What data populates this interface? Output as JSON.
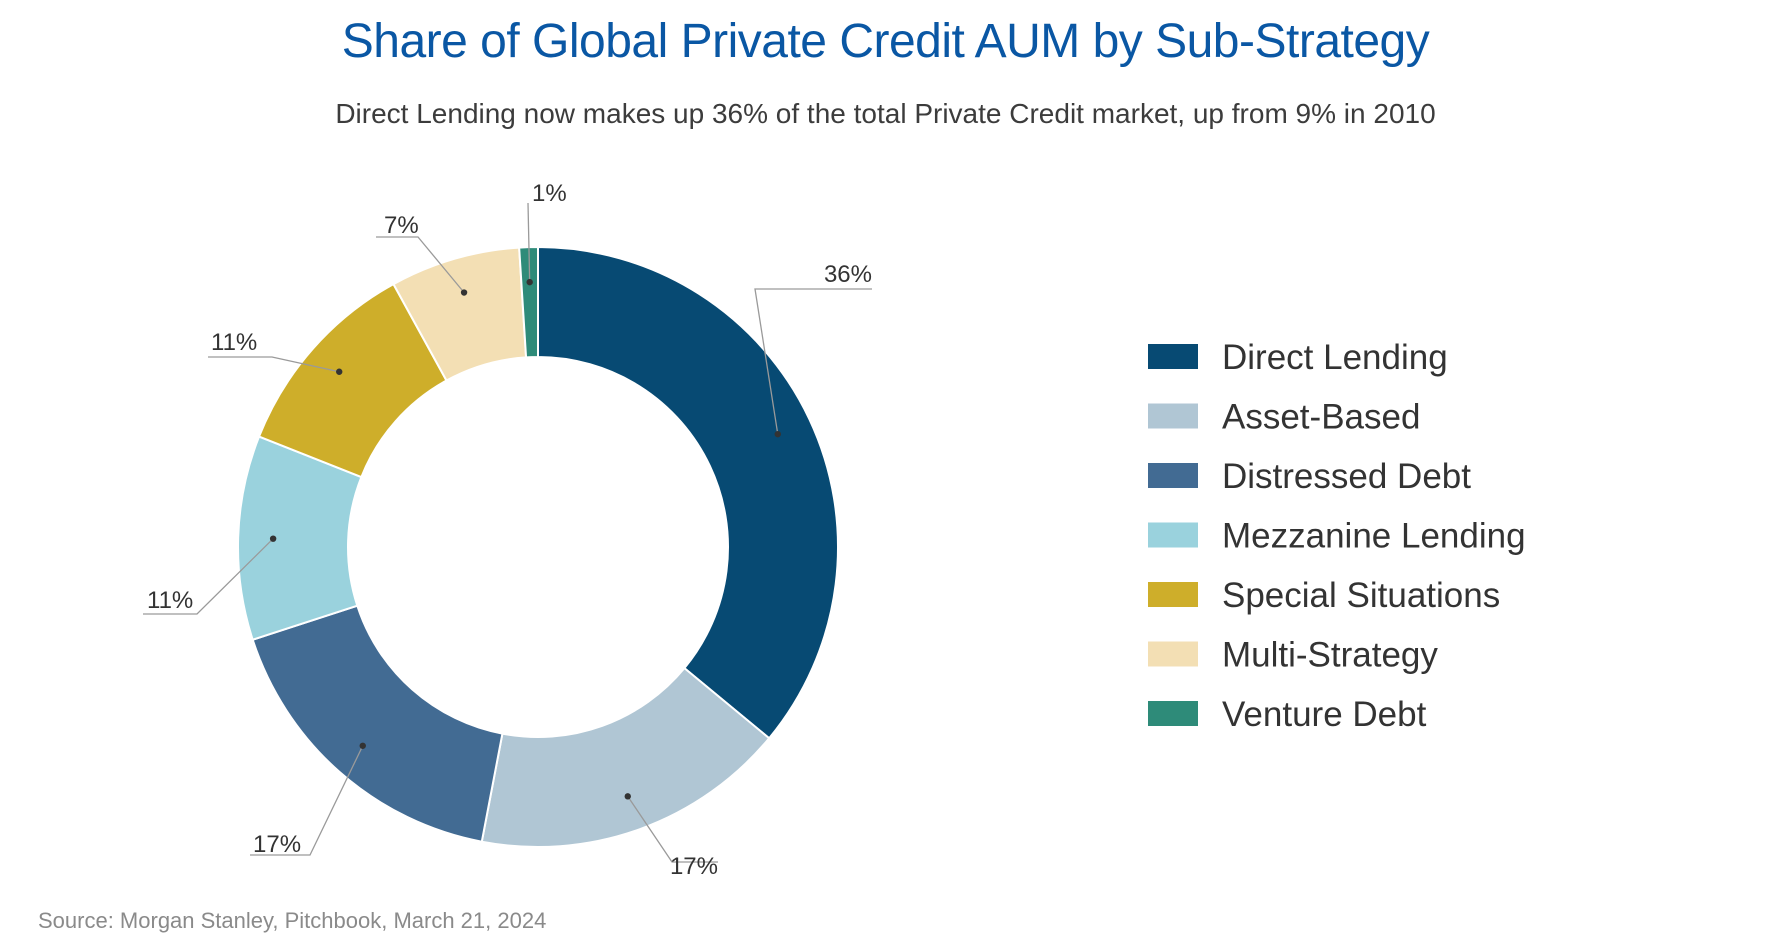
{
  "chart_data": {
    "type": "pie",
    "title": "Share of Global Private Credit AUM by Sub-Strategy",
    "subtitle": "Direct Lending now makes up 36% of the total Private Credit market, up from 9% in 2010",
    "donut": true,
    "legend_placement": "right",
    "categories": [
      "Direct Lending",
      "Asset-Based",
      "Distressed Debt",
      "Mezzanine Lending",
      "Special Situations",
      "Multi-Strategy",
      "Venture Debt"
    ],
    "values": [
      36,
      17,
      17,
      11,
      11,
      7,
      1
    ],
    "labels": [
      "36%",
      "17%",
      "17%",
      "11%",
      "11%",
      "7%",
      "1%"
    ],
    "colors": [
      "#074a73",
      "#b0c6d4",
      "#426b93",
      "#9ad2dd",
      "#ceae2a",
      "#f3dfb4",
      "#2e8b79"
    ]
  },
  "source": "Source: Morgan Stanley, Pitchbook, March 21, 2024"
}
